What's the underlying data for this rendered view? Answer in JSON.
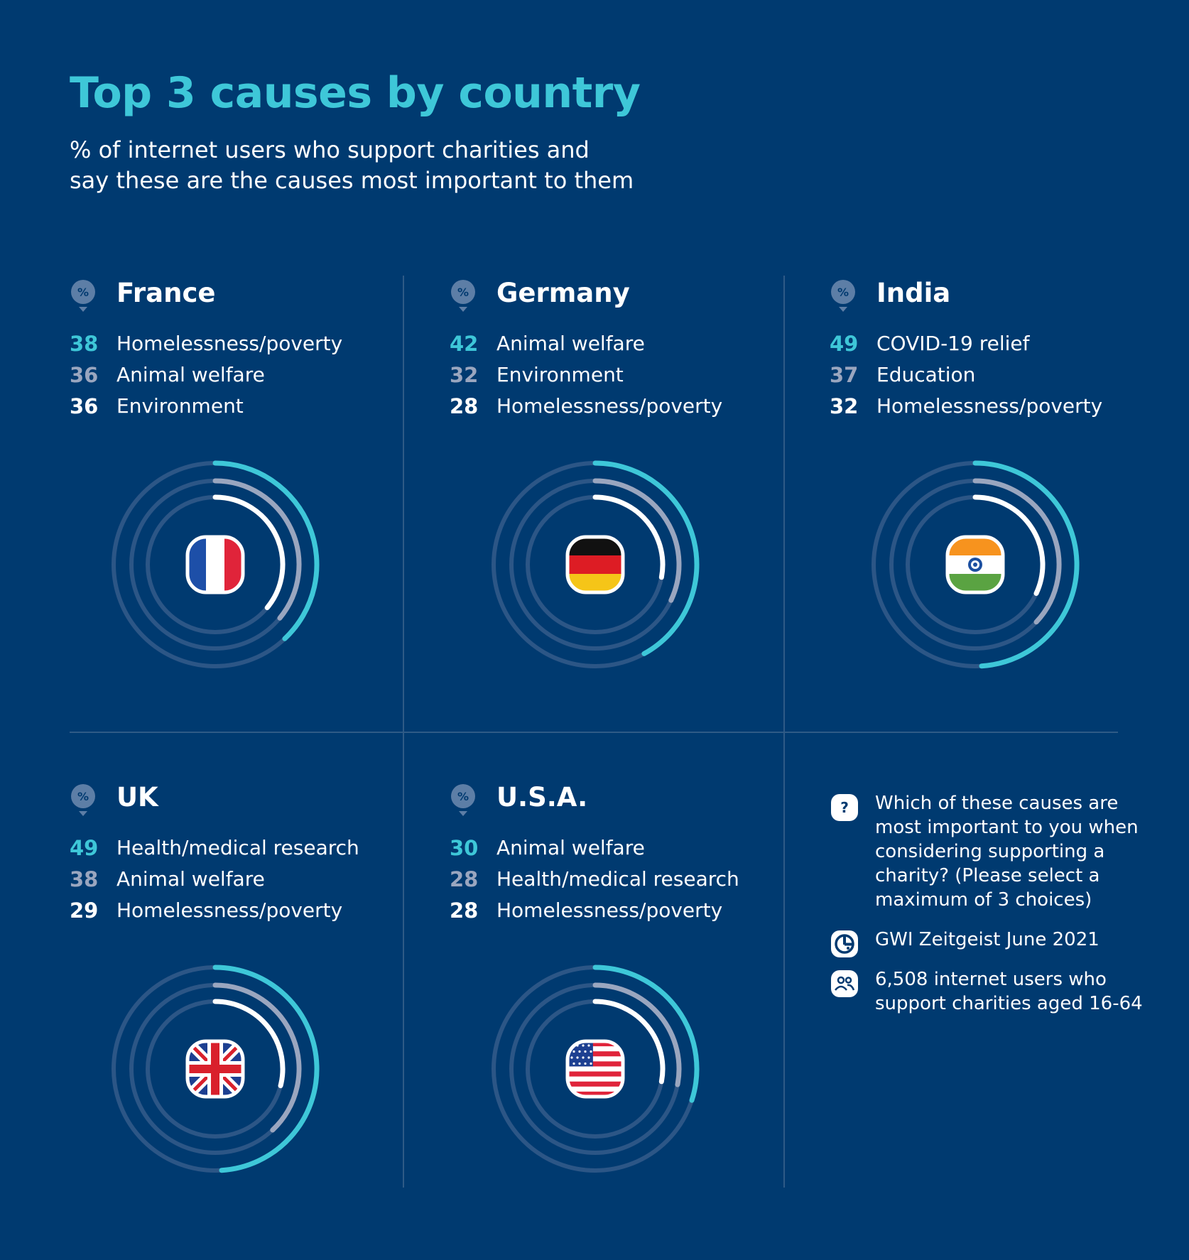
{
  "header": {
    "title": "Top 3 causes by country",
    "subtitle_line1": "% of internet users who support charities and",
    "subtitle_line2": "say these are the causes most important to them"
  },
  "colors": {
    "background": "#003a70",
    "accent_teal": "#3ec7d8",
    "muted_grey": "#9aa6bf",
    "white": "#ffffff",
    "track": "#2c5686"
  },
  "chart_data": [
    {
      "type": "radial bar",
      "title": "France",
      "series": [
        {
          "name": "Homelessness/poverty",
          "value": 38
        },
        {
          "name": "Animal welfare",
          "value": 36
        },
        {
          "name": "Environment",
          "value": 36
        }
      ],
      "max": 100,
      "flag": "france-flag-icon"
    },
    {
      "type": "radial bar",
      "title": "Germany",
      "series": [
        {
          "name": "Animal welfare",
          "value": 42
        },
        {
          "name": "Environment",
          "value": 32
        },
        {
          "name": "Homelessness/poverty",
          "value": 28
        }
      ],
      "max": 100,
      "flag": "germany-flag-icon"
    },
    {
      "type": "radial bar",
      "title": "India",
      "series": [
        {
          "name": "COVID-19 relief",
          "value": 49
        },
        {
          "name": "Education",
          "value": 37
        },
        {
          "name": "Homelessness/poverty",
          "value": 32
        }
      ],
      "max": 100,
      "flag": "india-flag-icon"
    },
    {
      "type": "radial bar",
      "title": "UK",
      "series": [
        {
          "name": "Health/medical research",
          "value": 49
        },
        {
          "name": "Animal welfare",
          "value": 38
        },
        {
          "name": "Homelessness/poverty",
          "value": 29
        }
      ],
      "max": 100,
      "flag": "uk-flag-icon"
    },
    {
      "type": "radial bar",
      "title": "U.S.A.",
      "series": [
        {
          "name": "Animal welfare",
          "value": 30
        },
        {
          "name": "Health/medical research",
          "value": 28
        },
        {
          "name": "Homelessness/poverty",
          "value": 28
        }
      ],
      "max": 100,
      "flag": "usa-flag-icon"
    }
  ],
  "badge_symbol": "%",
  "info": {
    "question": "Which of these causes are most important to you when considering supporting a charity? (Please select a maximum of 3 choices)",
    "question_icon": "question-icon",
    "question_symbol": "?",
    "source": "GWI Zeitgeist June 2021",
    "source_icon": "gwi-logo-icon",
    "base": "6,508 internet users who support charities aged 16-64",
    "base_icon": "people-icon"
  }
}
